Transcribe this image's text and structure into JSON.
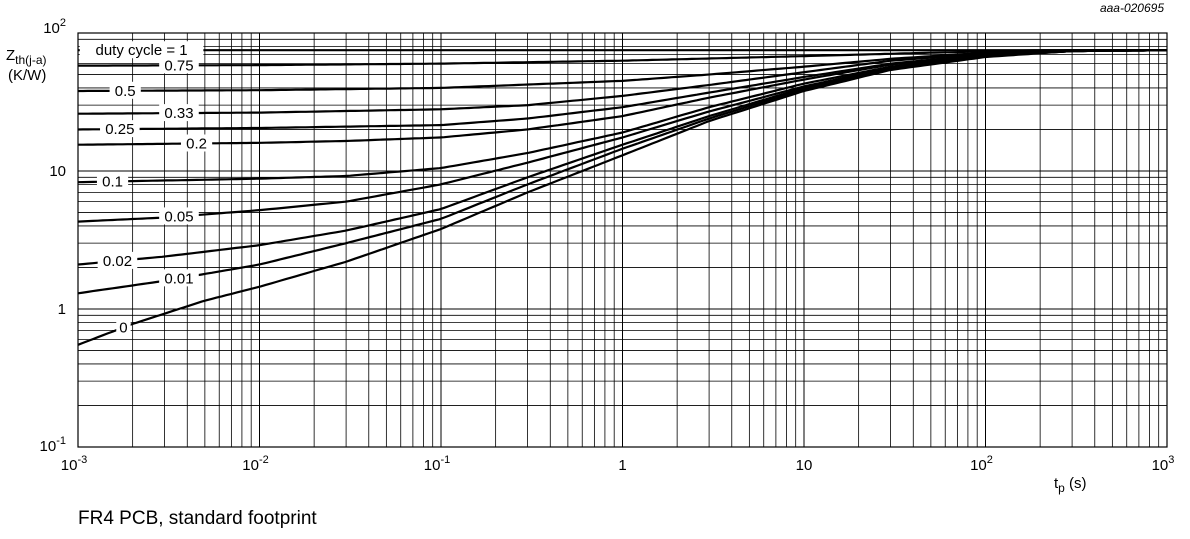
{
  "chart_data": {
    "type": "line",
    "x_scale": "log",
    "y_scale": "log",
    "xlim": [
      0.001,
      1000
    ],
    "ylim": [
      0.1,
      100
    ],
    "grid": true,
    "x_ticks": [
      {
        "value": 0.001,
        "base": "10",
        "exp": "-3"
      },
      {
        "value": 0.01,
        "base": "10",
        "exp": "-2"
      },
      {
        "value": 0.1,
        "base": "10",
        "exp": "-1"
      },
      {
        "value": 1,
        "base": "1",
        "exp": ""
      },
      {
        "value": 10,
        "base": "10",
        "exp": ""
      },
      {
        "value": 100,
        "base": "10",
        "exp": "2"
      },
      {
        "value": 1000,
        "base": "10",
        "exp": "3"
      }
    ],
    "y_ticks": [
      {
        "value": 0.1,
        "base": "10",
        "exp": "-1"
      },
      {
        "value": 1,
        "base": "1",
        "exp": ""
      },
      {
        "value": 10,
        "base": "10",
        "exp": ""
      },
      {
        "value": 100,
        "base": "10",
        "exp": "2"
      }
    ],
    "xlabel": {
      "main": "t",
      "sub": "p",
      "unit": " (s)"
    },
    "ylabel": {
      "main": "Z",
      "sub": "th(j-a)",
      "unit": "(K/W)"
    },
    "ref_code": "aaa-020695",
    "series": [
      {
        "name": "duty cycle = 1",
        "label_x": 0.00224,
        "x": [
          0.001,
          1000
        ],
        "y": [
          75,
          75
        ]
      },
      {
        "name": "0.75",
        "label_x": 0.0036,
        "x": [
          0.001,
          0.01,
          0.1,
          1,
          10,
          50,
          200,
          1000
        ],
        "y": [
          58,
          58.5,
          60,
          63,
          68,
          72,
          75,
          75
        ]
      },
      {
        "name": "0.5",
        "label_x": 0.00182,
        "x": [
          0.001,
          0.01,
          0.1,
          1,
          3,
          10,
          30,
          100,
          300,
          1000
        ],
        "y": [
          38,
          38.5,
          40,
          45,
          50,
          57,
          65,
          72,
          75,
          75
        ]
      },
      {
        "name": "0.33",
        "label_x": 0.0036,
        "x": [
          0.001,
          0.01,
          0.1,
          0.3,
          1,
          3,
          10,
          30,
          100,
          300,
          1000
        ],
        "y": [
          26,
          26.5,
          28,
          30,
          35,
          42,
          52,
          63,
          71,
          75,
          75
        ]
      },
      {
        "name": "0.25",
        "label_x": 0.0017,
        "x": [
          0.001,
          0.01,
          0.1,
          0.3,
          1,
          3,
          10,
          30,
          100,
          300,
          1000
        ],
        "y": [
          20,
          20.5,
          21.5,
          24,
          29,
          37,
          48,
          60,
          70,
          75,
          75
        ]
      },
      {
        "name": "0.2",
        "label_x": 0.0045,
        "x": [
          0.001,
          0.01,
          0.03,
          0.1,
          0.3,
          1,
          3,
          10,
          30,
          100,
          300,
          1000
        ],
        "y": [
          15.5,
          16,
          16.5,
          17.5,
          20,
          25,
          34,
          46,
          59,
          70,
          75,
          75
        ]
      },
      {
        "name": "0.1",
        "label_x": 0.00155,
        "x": [
          0.001,
          0.01,
          0.03,
          0.1,
          0.3,
          1,
          3,
          10,
          30,
          100,
          300,
          1000
        ],
        "y": [
          8.3,
          8.8,
          9.2,
          10.5,
          13.5,
          19,
          29,
          43,
          57,
          69,
          74,
          75
        ]
      },
      {
        "name": "0.05",
        "label_x": 0.0036,
        "x": [
          0.001,
          0.003,
          0.01,
          0.03,
          0.1,
          0.3,
          1,
          3,
          10,
          30,
          100,
          300,
          1000
        ],
        "y": [
          4.3,
          4.6,
          5.2,
          6,
          8,
          11.5,
          17.5,
          27,
          41,
          56,
          68,
          74,
          75
        ]
      },
      {
        "name": "0.02",
        "label_x": 0.00165,
        "x": [
          0.001,
          0.003,
          0.01,
          0.03,
          0.1,
          0.3,
          1,
          3,
          10,
          30,
          100,
          300,
          1000
        ],
        "y": [
          2.1,
          2.4,
          2.9,
          3.7,
          5.3,
          9,
          15.5,
          25,
          40,
          55,
          68,
          74,
          75
        ]
      },
      {
        "name": "0.01",
        "label_x": 0.0036,
        "x": [
          0.001,
          0.003,
          0.01,
          0.03,
          0.1,
          0.3,
          1,
          3,
          10,
          30,
          100,
          300,
          1000
        ],
        "y": [
          1.3,
          1.6,
          2.1,
          3,
          4.5,
          8,
          14.5,
          24,
          39,
          55,
          68,
          74,
          75
        ]
      },
      {
        "name": "0",
        "label_x": 0.00178,
        "x": [
          0.001,
          0.002,
          0.005,
          0.01,
          0.03,
          0.1,
          0.3,
          1,
          3,
          10,
          30,
          100,
          300,
          1000
        ],
        "y": [
          0.55,
          0.78,
          1.15,
          1.45,
          2.2,
          3.8,
          7,
          13,
          23,
          38,
          54,
          67,
          74,
          75
        ]
      }
    ]
  },
  "caption": "FR4 PCB, standard footprint"
}
